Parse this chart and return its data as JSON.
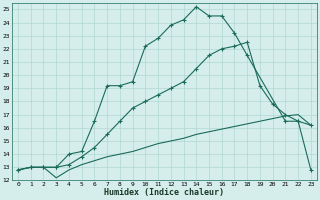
{
  "xlabel": "Humidex (Indice chaleur)",
  "xlim": [
    -0.5,
    23.5
  ],
  "ylim": [
    12,
    25.5
  ],
  "xticks": [
    0,
    1,
    2,
    3,
    4,
    5,
    6,
    7,
    8,
    9,
    10,
    11,
    12,
    13,
    14,
    15,
    16,
    17,
    18,
    19,
    20,
    21,
    22,
    23
  ],
  "yticks": [
    12,
    13,
    14,
    15,
    16,
    17,
    18,
    19,
    20,
    21,
    22,
    23,
    24,
    25
  ],
  "bg_color": "#d6eeeb",
  "grid_color": "#b0d8d0",
  "line_color": "#1a6b5a",
  "line1_x": [
    0,
    1,
    2,
    3,
    4,
    5,
    6,
    7,
    8,
    9,
    10,
    11,
    12,
    13,
    14,
    15,
    16,
    17,
    18,
    21,
    22,
    23
  ],
  "line1_y": [
    12.8,
    13.0,
    13.0,
    13.0,
    14.0,
    14.2,
    16.5,
    19.2,
    19.2,
    19.5,
    22.2,
    22.8,
    23.8,
    24.2,
    25.2,
    24.5,
    24.5,
    23.2,
    21.5,
    16.5,
    16.5,
    12.8
  ],
  "line2_x": [
    0,
    1,
    2,
    3,
    4,
    5,
    6,
    7,
    8,
    9,
    10,
    11,
    12,
    13,
    14,
    15,
    16,
    17,
    18,
    19,
    20,
    21,
    22,
    23
  ],
  "line2_y": [
    12.8,
    13.0,
    13.0,
    13.0,
    13.2,
    13.8,
    14.5,
    15.5,
    16.5,
    17.5,
    18.0,
    18.5,
    19.0,
    19.5,
    20.5,
    21.5,
    22.0,
    22.2,
    22.5,
    19.2,
    17.8,
    17.0,
    16.5,
    16.2
  ],
  "line3_x": [
    0,
    1,
    2,
    3,
    4,
    5,
    6,
    7,
    8,
    9,
    10,
    11,
    12,
    13,
    14,
    15,
    16,
    17,
    18,
    19,
    20,
    21,
    22,
    23
  ],
  "line3_y": [
    12.8,
    13.0,
    13.0,
    12.2,
    12.8,
    13.2,
    13.5,
    13.8,
    14.0,
    14.2,
    14.5,
    14.8,
    15.0,
    15.2,
    15.5,
    15.7,
    15.9,
    16.1,
    16.3,
    16.5,
    16.7,
    16.9,
    17.0,
    16.2
  ]
}
